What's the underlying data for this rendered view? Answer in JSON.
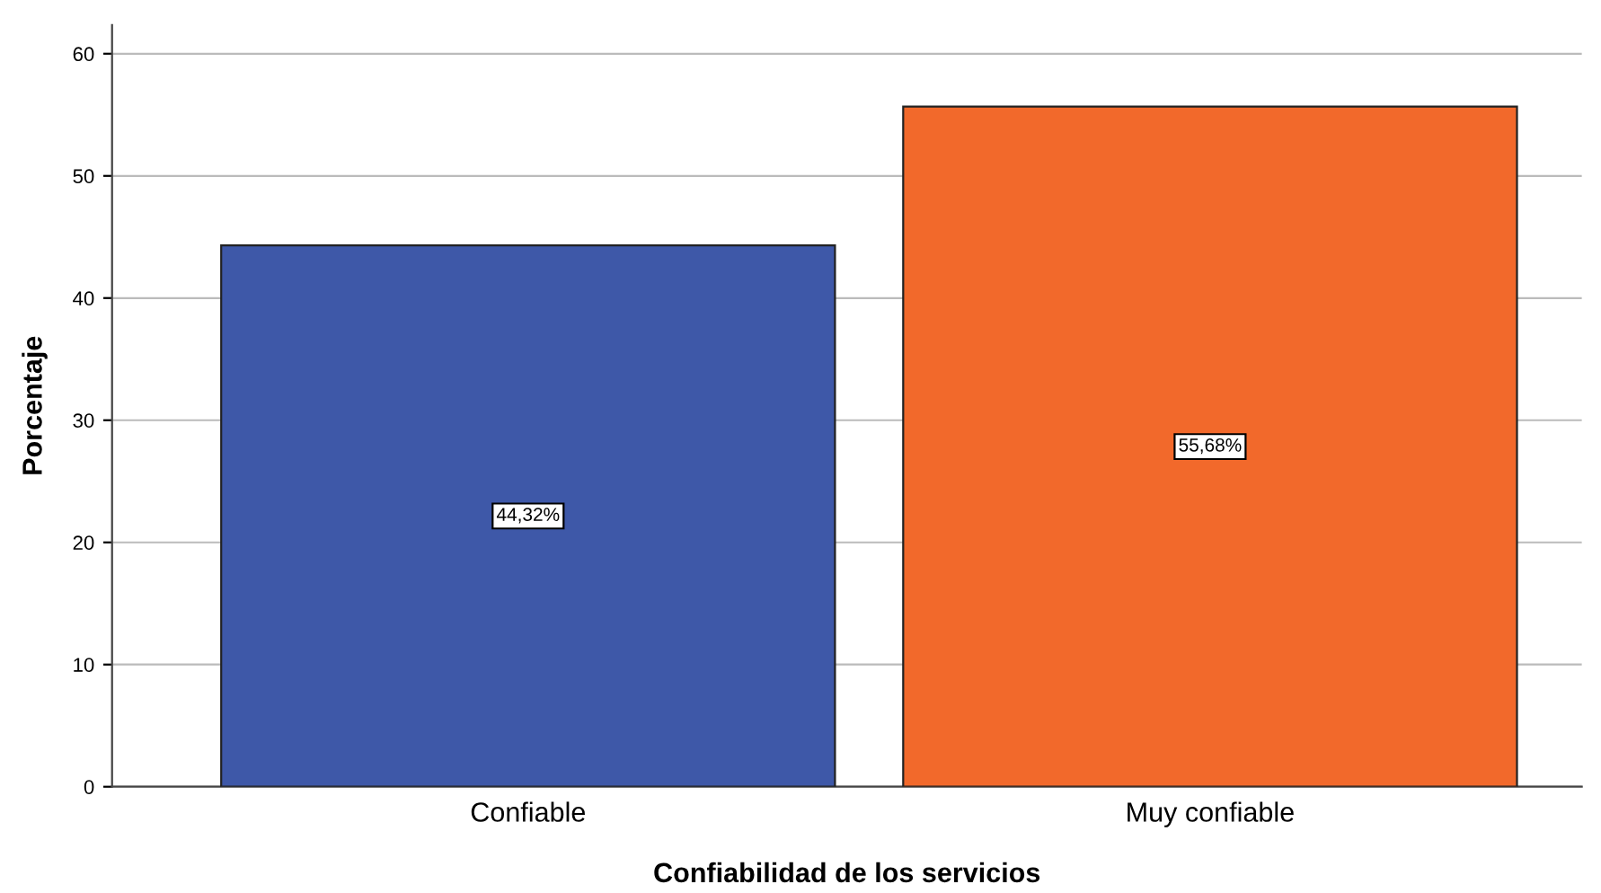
{
  "chart_data": {
    "type": "bar",
    "xlabel": "Confiabilidad de los servicios",
    "ylabel": "Porcentaje",
    "categories": [
      "Confiable",
      "Muy confiable"
    ],
    "values": [
      44.32,
      55.68
    ],
    "colors": [
      "#3e58a8",
      "#f2692b"
    ],
    "value_labels": [
      "44,32%",
      "55,68%"
    ],
    "ylim": [
      0,
      62.35
    ],
    "yticks": [
      0,
      10,
      20,
      30,
      40,
      50,
      60
    ],
    "grid": "y"
  }
}
